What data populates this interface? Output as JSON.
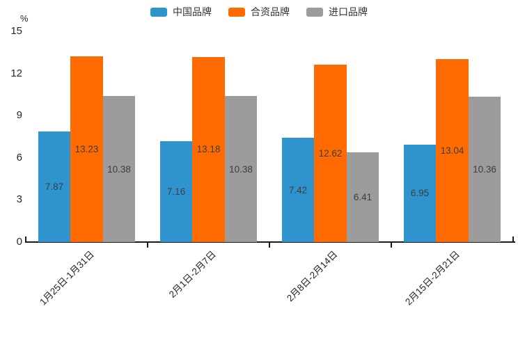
{
  "chart_data": {
    "type": "bar",
    "title": "",
    "categories": [
      "1月25日-1月31日",
      "2月1日-2月7日",
      "2月8日-2月14日",
      "2月15日-2月21日"
    ],
    "series": [
      {
        "name": "中国品牌",
        "color": "#2F94CE",
        "values": [
          7.87,
          7.16,
          7.42,
          6.95
        ]
      },
      {
        "name": "合资品牌",
        "color": "#FF6B00",
        "values": [
          13.23,
          13.18,
          12.62,
          13.04
        ]
      },
      {
        "name": "进口品牌",
        "color": "#9C9C9C",
        "values": [
          10.38,
          10.38,
          6.41,
          10.36
        ]
      }
    ],
    "xlabel": "",
    "ylabel": "%",
    "ylim": [
      0,
      15
    ],
    "yticks": [
      0,
      3,
      6,
      9,
      12,
      15
    ],
    "grid": false,
    "legend_position": "top",
    "value_labels": true,
    "value_label_decimals": 2,
    "axis_color": "#1a1a1a",
    "value_label_color": "#3d3d3d",
    "tick_label_color": "#262626"
  }
}
